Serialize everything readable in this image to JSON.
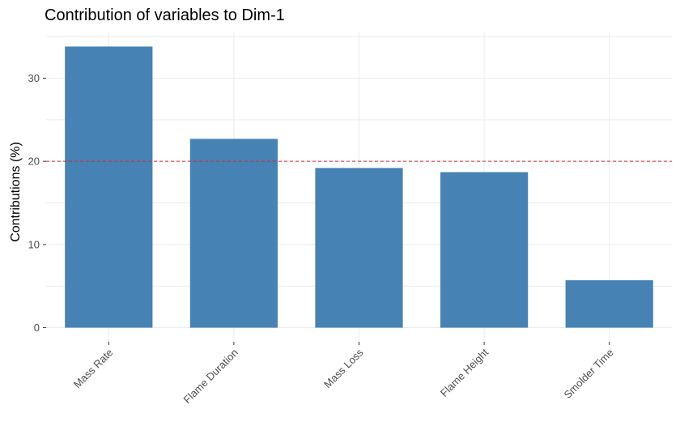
{
  "chart_data": {
    "type": "bar",
    "title": "Contribution of variables to Dim-1",
    "xlabel": "",
    "ylabel": "Contributions (%)",
    "categories": [
      "Mass Rate",
      "Flame Duration",
      "Mass Loss",
      "Flame Height",
      "Smolder Time"
    ],
    "values": [
      33.8,
      22.7,
      19.2,
      18.7,
      5.7
    ],
    "ylim": [
      -1.7,
      35.5
    ],
    "yticks": [
      0,
      10,
      20,
      30
    ],
    "reference_line": 20,
    "grid": true,
    "bar_color": "#4682B4",
    "reference_line_color": "#CC2A36",
    "grid_color": "#EBEBEB"
  }
}
